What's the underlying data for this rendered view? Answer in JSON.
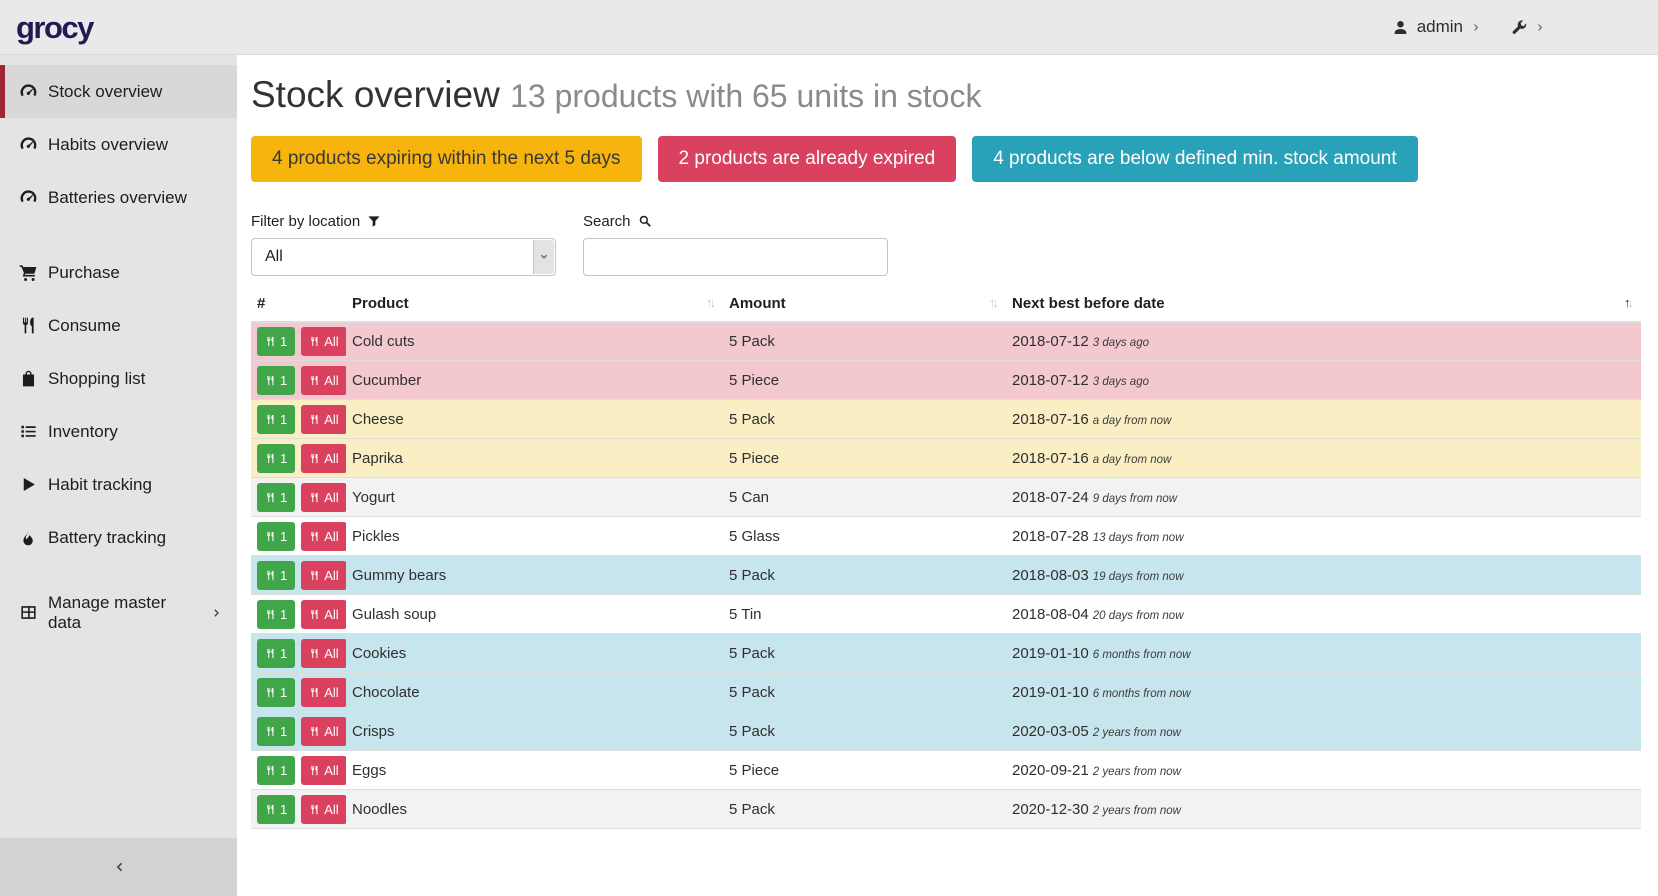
{
  "header": {
    "logo": "grocy",
    "user_label": "admin"
  },
  "sidebar": {
    "groups": [
      {
        "items": [
          {
            "icon": "tachometer",
            "label": "Stock overview",
            "active": true
          },
          {
            "icon": "tachometer",
            "label": "Habits overview"
          },
          {
            "icon": "tachometer",
            "label": "Batteries overview"
          }
        ]
      },
      {
        "items": [
          {
            "icon": "cart",
            "label": "Purchase"
          },
          {
            "icon": "utensils",
            "label": "Consume"
          },
          {
            "icon": "bag",
            "label": "Shopping list"
          },
          {
            "icon": "list",
            "label": "Inventory"
          },
          {
            "icon": "play",
            "label": "Habit tracking"
          },
          {
            "icon": "flame",
            "label": "Battery tracking"
          }
        ]
      },
      {
        "items": [
          {
            "icon": "table",
            "label": "Manage master data",
            "chevron": true
          }
        ]
      }
    ]
  },
  "page": {
    "title": "Stock overview",
    "subtitle": "13 products with 65 units in stock",
    "badges": [
      {
        "label": "4 products expiring within the next 5 days",
        "color": "#f6b40c",
        "text_color": "#383838"
      },
      {
        "label": "2 products are already expired",
        "color": "#d9415e",
        "text_color": "#ffffff"
      },
      {
        "label": "4 products are below defined min. stock amount",
        "color": "#29a1b8",
        "text_color": "#ffffff"
      }
    ],
    "filter": {
      "label": "Filter by location",
      "value": "All"
    },
    "search": {
      "label": "Search",
      "value": "",
      "placeholder": ""
    }
  },
  "table": {
    "columns": [
      {
        "label": "#",
        "sortable": false
      },
      {
        "label": "Product",
        "sortable": true
      },
      {
        "label": "Amount",
        "sortable": true
      },
      {
        "label": "Next best before date",
        "sortable": true,
        "sorted": "asc"
      }
    ],
    "buttons": {
      "consume_one": "1",
      "consume_all": "All"
    },
    "rows": [
      {
        "product": "Cold cuts",
        "amount": "5 Pack",
        "date": "2018-07-12",
        "relative": "3 days ago",
        "status": "expired"
      },
      {
        "product": "Cucumber",
        "amount": "5 Piece",
        "date": "2018-07-12",
        "relative": "3 days ago",
        "status": "expired"
      },
      {
        "product": "Cheese",
        "amount": "5 Pack",
        "date": "2018-07-16",
        "relative": "a day from now",
        "status": "expiring"
      },
      {
        "product": "Paprika",
        "amount": "5 Piece",
        "date": "2018-07-16",
        "relative": "a day from now",
        "status": "expiring"
      },
      {
        "product": "Yogurt",
        "amount": "5 Can",
        "date": "2018-07-24",
        "relative": "9 days from now",
        "status": "none"
      },
      {
        "product": "Pickles",
        "amount": "5 Glass",
        "date": "2018-07-28",
        "relative": "13 days from now",
        "status": "none"
      },
      {
        "product": "Gummy bears",
        "amount": "5 Pack",
        "date": "2018-08-03",
        "relative": "19 days from now",
        "status": "belowmin"
      },
      {
        "product": "Gulash soup",
        "amount": "5 Tin",
        "date": "2018-08-04",
        "relative": "20 days from now",
        "status": "none"
      },
      {
        "product": "Cookies",
        "amount": "5 Pack",
        "date": "2019-01-10",
        "relative": "6 months from now",
        "status": "belowmin"
      },
      {
        "product": "Chocolate",
        "amount": "5 Pack",
        "date": "2019-01-10",
        "relative": "6 months from now",
        "status": "belowmin"
      },
      {
        "product": "Crisps",
        "amount": "5 Pack",
        "date": "2020-03-05",
        "relative": "2 years from now",
        "status": "belowmin"
      },
      {
        "product": "Eggs",
        "amount": "5 Piece",
        "date": "2020-09-21",
        "relative": "2 years from now",
        "status": "none"
      },
      {
        "product": "Noodles",
        "amount": "5 Pack",
        "date": "2020-12-30",
        "relative": "2 years from now",
        "status": "none"
      }
    ]
  },
  "colors": {
    "accent_red": "#9e2533",
    "logo_navy": "#221a52",
    "btn_green": "#41a649",
    "btn_red": "#d9415e",
    "row_danger": "#f3c8cf",
    "row_warning": "#faeec5",
    "row_info": "#c7e5ed",
    "row_stripe": "#f2f2f2"
  }
}
